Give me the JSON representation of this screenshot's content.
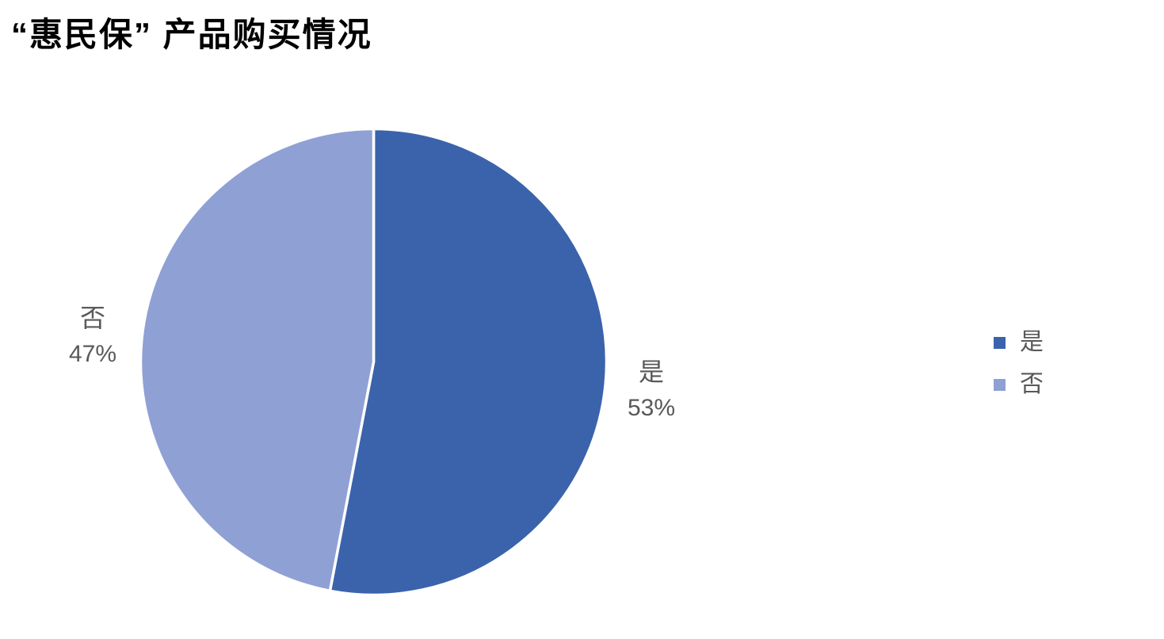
{
  "title": "“惠民保” 产品购买情况",
  "chart_data": {
    "type": "pie",
    "title": "“惠民保” 产品购买情况",
    "categories": [
      "是",
      "否"
    ],
    "values": [
      53,
      47
    ],
    "slices": [
      {
        "label": "是",
        "value": 53,
        "pct_label": "53%",
        "color": "#3B63AC"
      },
      {
        "label": "否",
        "value": 47,
        "pct_label": "47%",
        "color": "#8FA0D4"
      }
    ],
    "start_angle_deg": 0,
    "direction": "clockwise",
    "separator_color": "#FFFFFF",
    "label_color": "#595959",
    "legend_position": "right",
    "background": "#FFFFFF"
  }
}
